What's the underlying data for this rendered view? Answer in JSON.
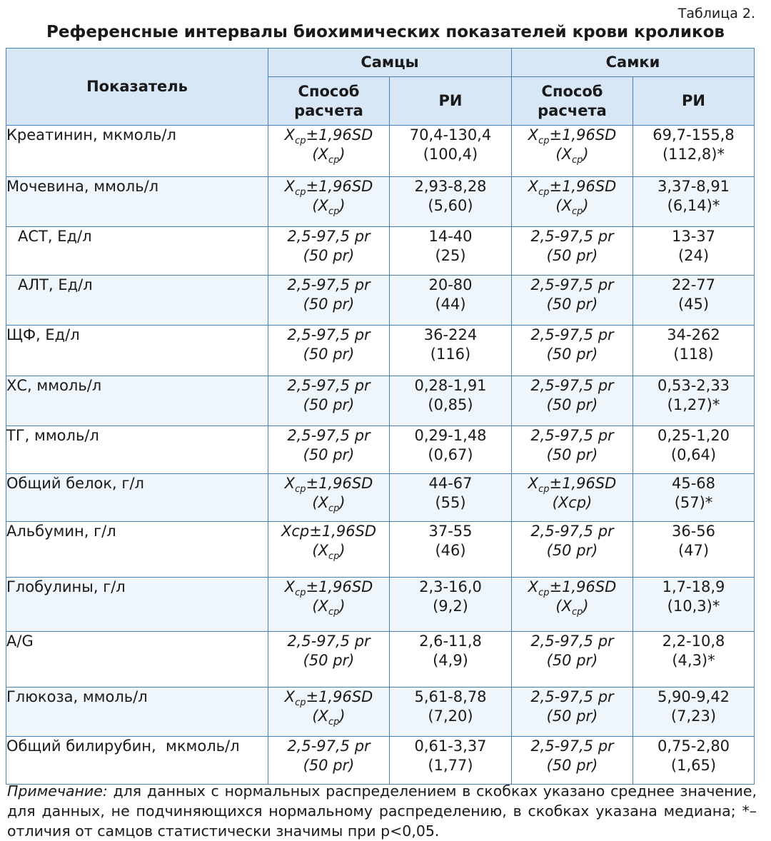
{
  "table_number": "Таблица 2.",
  "title": "Референсные интервалы биохимических показателей крови кроликов",
  "header": {
    "indicator": "Показатель",
    "males": "Самцы",
    "females": "Самки",
    "method_line1": "Способ",
    "method_line2": "расчета",
    "ri": "РИ"
  },
  "rows": [
    {
      "name": "Креатинин, мкмоль/л",
      "m_method": "X±1,96SD (X)",
      "m_ri1": "70,4-130,4",
      "m_ri2": "(100,4)",
      "f_method": "X±1,96SD (X)",
      "f_ri1": "69,7-155,8",
      "f_ri2": "(112,8)*"
    },
    {
      "name": "Мочевина, ммоль/л",
      "m_method": "X±1,96SD (X)",
      "m_ri1": "2,93-8,28",
      "m_ri2": "(5,60)",
      "f_method": "X±1,96SD (X)",
      "f_ri1": "3,37-8,91",
      "f_ri2": "(6,14)*"
    },
    {
      "name": "АСТ, Ед/л",
      "m_method1": "2,5-97,5 pr",
      "m_method2": "(50 pr)",
      "m_ri1": "14-40",
      "m_ri2": "(25)",
      "f_method1": "2,5-97,5 pr",
      "f_method2": "(50 pr)",
      "f_ri1": "13-37",
      "f_ri2": "(24)"
    },
    {
      "name": "АЛТ, Ед/л",
      "m_method1": "2,5-97,5 pr",
      "m_method2": "(50 pr)",
      "m_ri1": "20-80",
      "m_ri2": "(44)",
      "f_method1": "2,5-97,5 pr",
      "f_method2": "(50 pr)",
      "f_ri1": "22-77",
      "f_ri2": "(45)"
    },
    {
      "name": "ЩФ, Ед/л",
      "m_method1": "2,5-97,5 pr",
      "m_method2": "(50 pr)",
      "m_ri1": "36-224",
      "m_ri2": "(116)",
      "f_method1": "2,5-97,5 pr",
      "f_method2": "(50 pr)",
      "f_ri1": "34-262",
      "f_ri2": "(118)"
    },
    {
      "name": "ХС, ммоль/л",
      "m_method1": "2,5-97,5 pr",
      "m_method2": "(50 pr)",
      "m_ri1": "0,28-1,91",
      "m_ri2": "(0,85)",
      "f_method1": "2,5-97,5 pr",
      "f_method2": "(50 pr)",
      "f_ri1": "0,53-2,33",
      "f_ri2": "(1,27)*"
    },
    {
      "name": "ТГ, ммоль/л",
      "m_method1": "2,5-97,5 pr",
      "m_method2": "(50 pr)",
      "m_ri1": "0,29-1,48",
      "m_ri2": "(0,67)",
      "f_method1": "2,5-97,5 pr",
      "f_method2": "(50 pr)",
      "f_ri1": "0,25-1,20",
      "f_ri2": "(0,64)"
    },
    {
      "name": "Общий белок, г/л",
      "m_method": "X±1,96SD (X)",
      "m_ri1": "44-67",
      "m_ri2": "(55)",
      "f_method": "X±1,96SD (Xср)",
      "f_ri1": "45-68",
      "f_ri2": "(57)*"
    },
    {
      "name": "Альбумин, г/л",
      "m_method": "Xср±1,96SD (X)",
      "m_ri1": "37-55",
      "m_ri2": "(46)",
      "f_method1": "2,5-97,5 pr",
      "f_method2": "(50 pr)",
      "f_ri1": "36-56",
      "f_ri2": "(47)"
    },
    {
      "name": "Глобулины, г/л",
      "m_method": "X±1,96SD (X)",
      "m_ri1": "2,3-16,0",
      "m_ri2": "(9,2)",
      "f_method": "X±1,96SD (X)",
      "f_ri1": "1,7-18,9",
      "f_ri2": "(10,3)*"
    },
    {
      "name": "A/G",
      "m_method1": "2,5-97,5 pr",
      "m_method2": "(50 pr)",
      "m_ri1": "2,6-11,8",
      "m_ri2": "(4,9)",
      "f_method1": "2,5-97,5 pr",
      "f_method2": "(50 pr)",
      "f_ri1": "2,2-10,8",
      "f_ri2": "(4,3)*"
    },
    {
      "name": "Глюкоза, ммоль/л",
      "m_method": "X±1,96SD (X)",
      "m_ri1": "5,61-8,78",
      "m_ri2": "(7,20)",
      "f_method1": "2,5-97,5 pr",
      "f_method2": "(50 pr)",
      "f_ri1": "5,90-9,42",
      "f_ri2": "(7,23)"
    },
    {
      "name": "Общий билирубин,  мкмоль/л",
      "m_method1": "2,5-97,5 pr",
      "m_method2": "(50 pr)",
      "m_ri1": "0,61-3,37",
      "m_ri2": "(1,77)",
      "f_method1": "2,5-97,5 pr",
      "f_method2": "(50 pr)",
      "f_ri1": "0,75-2,80",
      "f_ri2": "(1,65)"
    }
  ],
  "note": {
    "label": "Примечание:",
    "text": " для данных с нормальных распределением в скобках указано среднее значение, для данных, не подчиняющихся нормальному распределению, в скобках указана медиана; *– отличия от самцов статистически значимы при p<0,05."
  }
}
